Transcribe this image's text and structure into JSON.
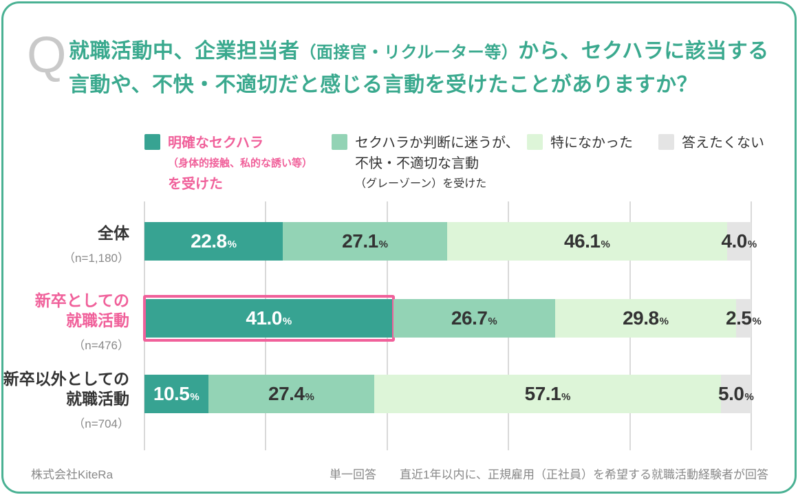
{
  "question": {
    "q_mark": "Q",
    "line1_parts": [
      {
        "text": "就職活動中、企業担当者"
      },
      {
        "text": "（面接官・リクルーター等）"
      },
      {
        "text": "から、セクハラに該当する"
      }
    ],
    "line2": "言動や、不快・不適切だと感じる言動を受けたことがありますか？",
    "title_color": "#3aa98e"
  },
  "legend": {
    "items": [
      {
        "color": "#37a392",
        "text_color": "#f0609a",
        "lines": [
          "明確なセクハラ",
          "（身体的接触、私的な誘い等）",
          "を受けた"
        ]
      },
      {
        "color": "#93d3b5",
        "lines": [
          "セクハラか判断に迷うが、",
          "不快・不適切な言動",
          "（グレーゾーン）を受けた"
        ]
      },
      {
        "color": "#ddf5d8",
        "lines": [
          "特になかった"
        ]
      },
      {
        "color": "#e4e4e4",
        "lines": [
          "答えたくない"
        ]
      }
    ]
  },
  "chart_data": {
    "type": "bar",
    "stacked": true,
    "orientation": "horizontal",
    "unit": "%",
    "percent_suffix": "%",
    "categories": [
      "全体（n=1,180）",
      "新卒としての就職活動（n=476）",
      "新卒以外としての就職活動（n=704）"
    ],
    "series": [
      {
        "name": "明確なセクハラ（身体的接触、私的な誘い等）を受けた",
        "color": "#37a392",
        "label_color": "#ffffff",
        "values": [
          22.8,
          41.0,
          10.5
        ]
      },
      {
        "name": "セクハラか判断に迷うが、不快・不適切な言動（グレーゾーン）を受けた",
        "color": "#93d3b5",
        "label_color": "#333333",
        "values": [
          27.1,
          26.7,
          27.4
        ]
      },
      {
        "name": "特になかった",
        "color": "#ddf5d8",
        "label_color": "#333333",
        "values": [
          46.1,
          29.8,
          57.1
        ]
      },
      {
        "name": "答えたくない",
        "color": "#e4e4e4",
        "label_color": "#333333",
        "values": [
          4.0,
          2.5,
          5.0
        ]
      }
    ],
    "xlim": [
      0,
      100
    ],
    "gridlines_every": 20,
    "grid": true,
    "legend_position": "top",
    "highlight": {
      "row": 1,
      "segment": 0,
      "border_color": "#f0609a"
    }
  },
  "rows": [
    {
      "label_lines": [
        "全体"
      ],
      "n": "（n=1,180）",
      "emphasized": false
    },
    {
      "label_lines": [
        "新卒としての",
        "就職活動"
      ],
      "n": "（n=476）",
      "emphasized": true
    },
    {
      "label_lines": [
        "新卒以外としての",
        "就職活動"
      ],
      "n": "（n=704）",
      "emphasized": false
    }
  ],
  "footer": {
    "left": "株式会社KiteRa",
    "right_type": "単一回答",
    "right_note": "直近1年以内に、正規雇用（正社員）を希望する就職活動経験者が回答"
  }
}
